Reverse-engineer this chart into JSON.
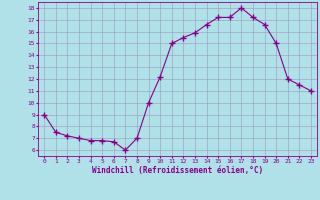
{
  "x": [
    0,
    1,
    2,
    3,
    4,
    5,
    6,
    7,
    8,
    9,
    10,
    11,
    12,
    13,
    14,
    15,
    16,
    17,
    18,
    19,
    20,
    21,
    22,
    23
  ],
  "y": [
    9,
    7.5,
    7.2,
    7.0,
    6.8,
    6.8,
    6.7,
    6.0,
    7.0,
    10.0,
    12.2,
    15.0,
    15.5,
    15.9,
    16.6,
    17.2,
    17.2,
    18.0,
    17.2,
    16.6,
    15.0,
    12.0,
    11.5,
    11.0
  ],
  "line_color": "#880088",
  "marker": "+",
  "marker_color": "#880088",
  "bg_color": "#b0e0e8",
  "grid_color": "#9999bb",
  "xlabel": "Windchill (Refroidissement éolien,°C)",
  "xlabel_color": "#880088",
  "tick_color": "#880088",
  "ylabel_ticks": [
    6,
    7,
    8,
    9,
    10,
    11,
    12,
    13,
    14,
    15,
    16,
    17,
    18
  ],
  "xlim": [
    -0.5,
    23.5
  ],
  "ylim": [
    5.5,
    18.5
  ],
  "font": "monospace"
}
